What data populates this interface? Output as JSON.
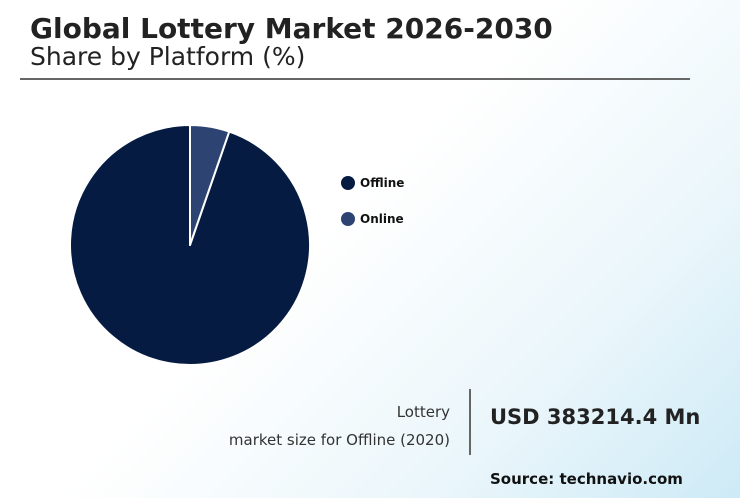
{
  "header": {
    "title": "Global Lottery Market 2026-2030",
    "subtitle": "Share by Platform (%)"
  },
  "chart_data": {
    "type": "pie",
    "categories": [
      "Offline",
      "Online"
    ],
    "values": [
      94.7,
      5.3
    ],
    "colors": [
      "#061b42",
      "#2d4472"
    ],
    "start": "12 o'clock",
    "direction": "counter-clockwise",
    "legend_placement": "right"
  },
  "stat": {
    "caption_line1": "Lottery",
    "caption_line2": "market size for Offline (2020)",
    "value": "USD 383214.4 Mn"
  },
  "footer": {
    "source": "Source: technavio.com"
  }
}
